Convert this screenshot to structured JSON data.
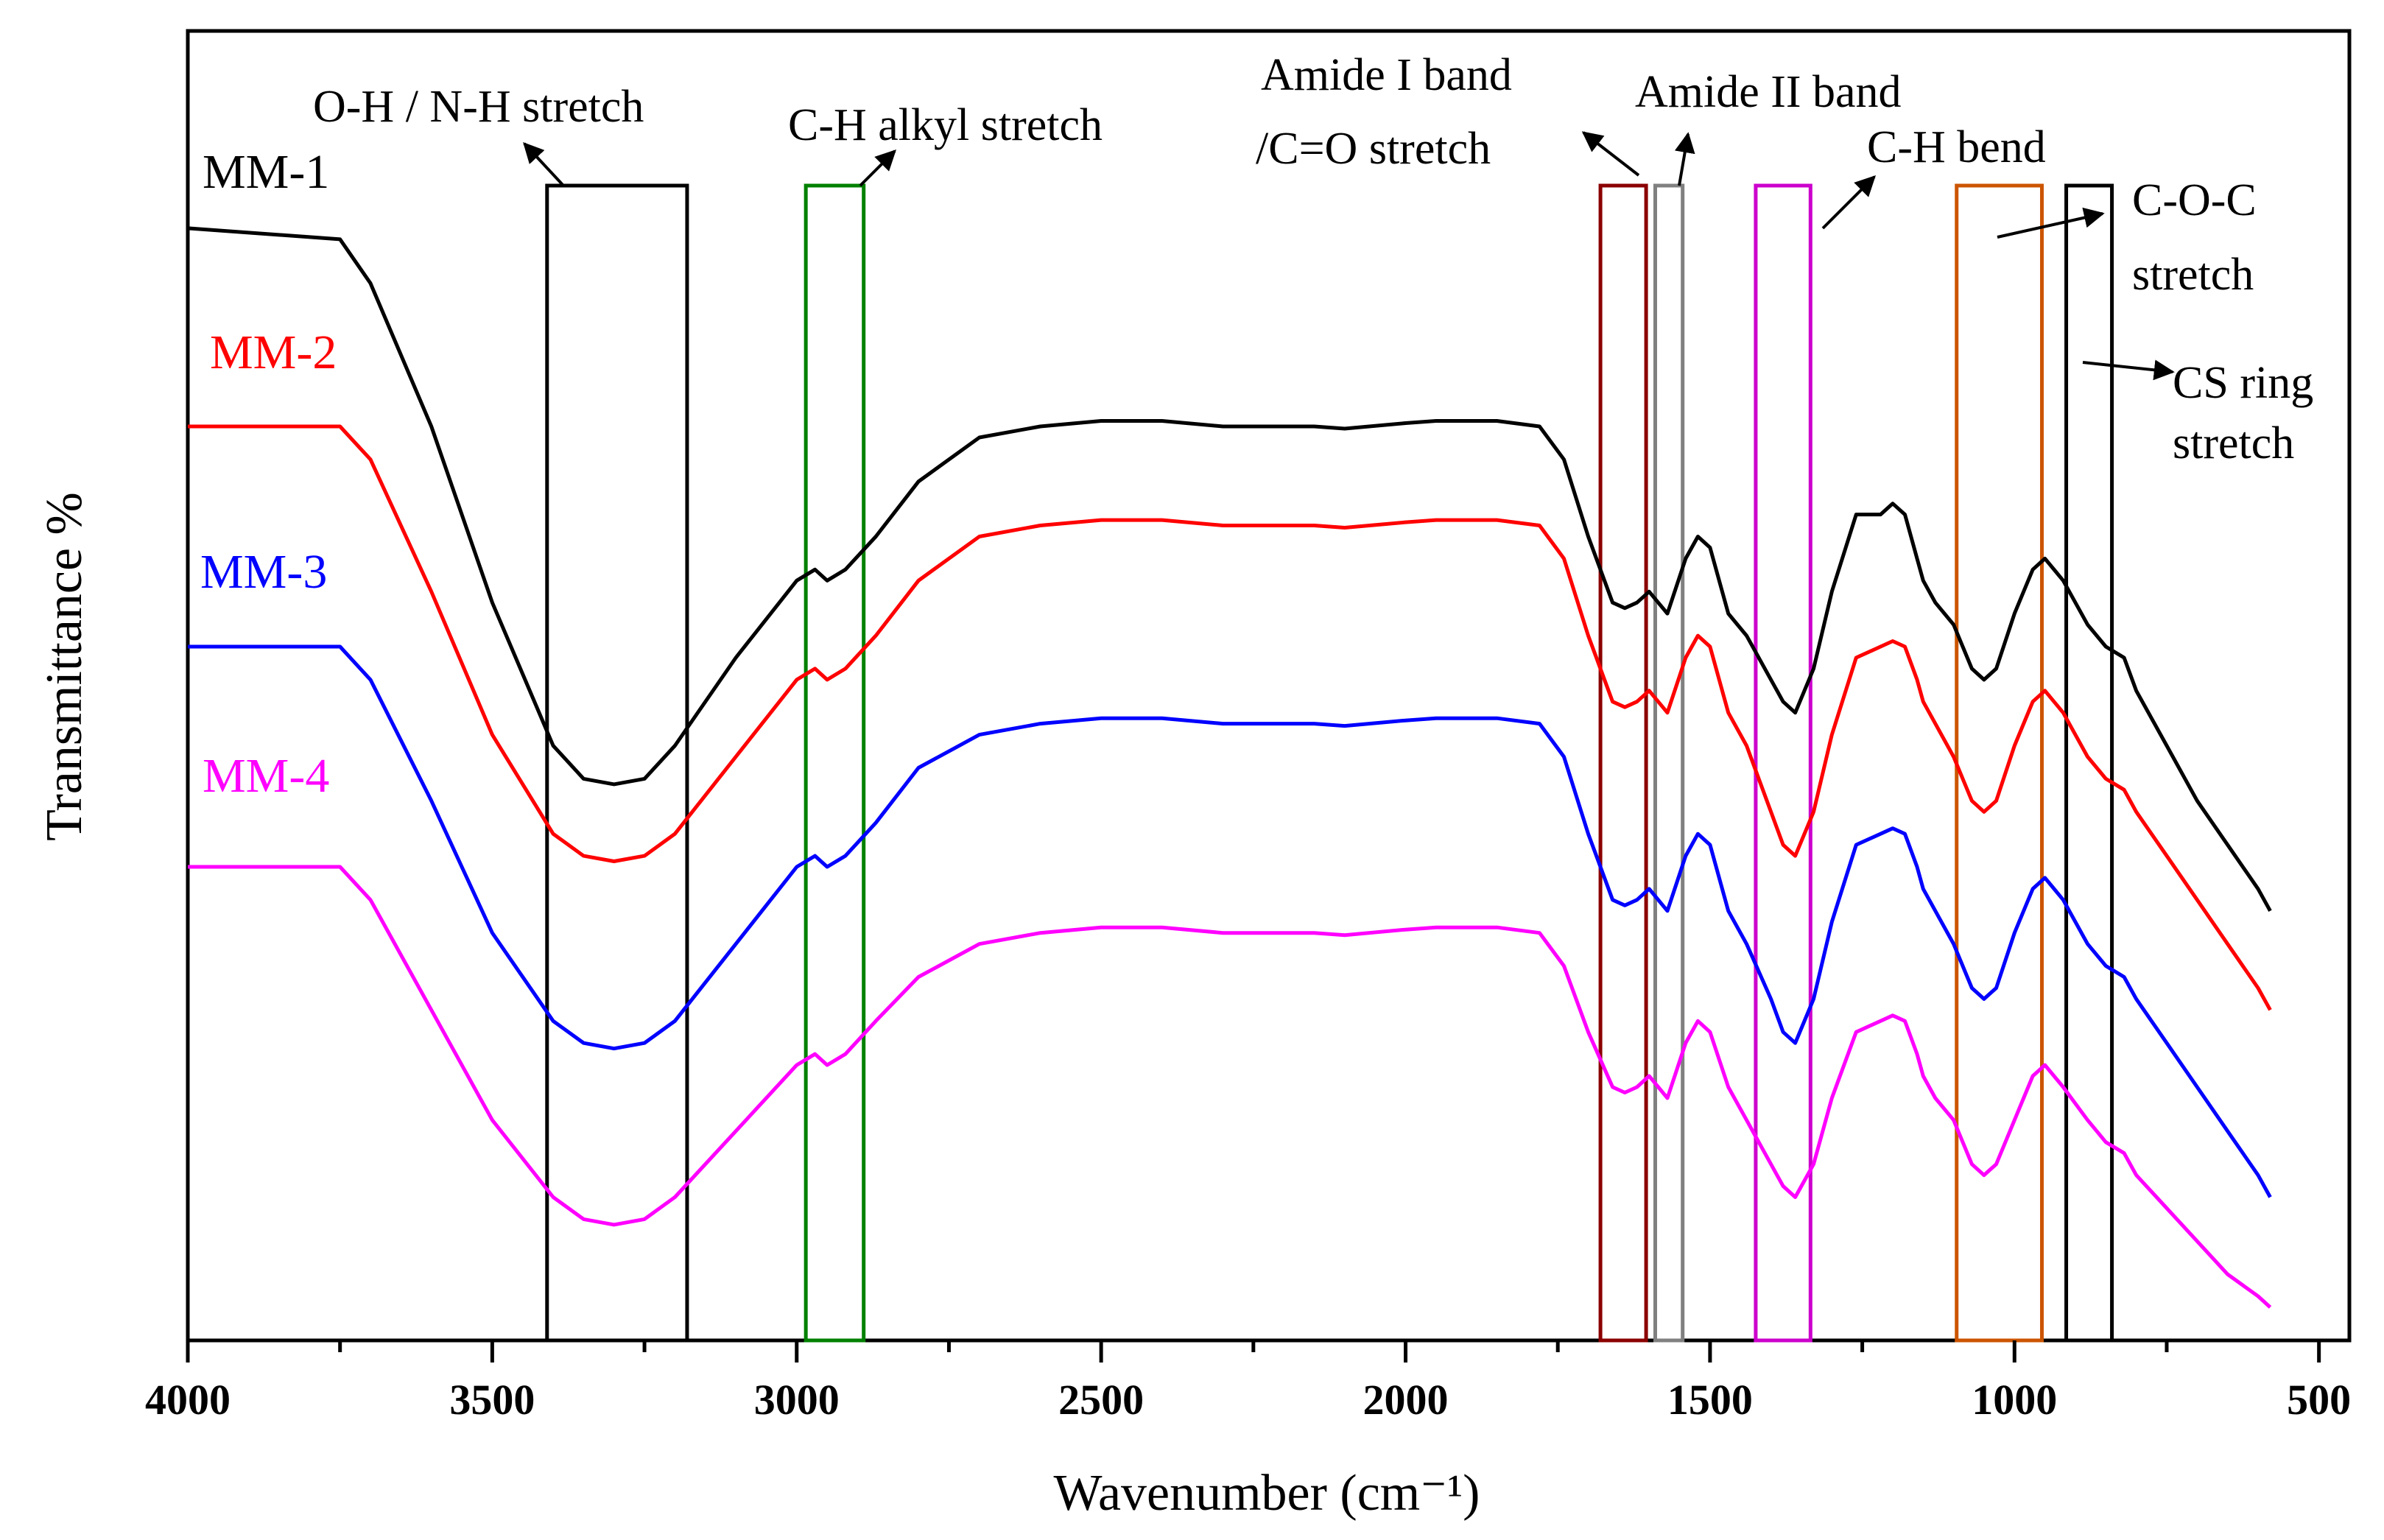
{
  "chart_data": {
    "type": "line",
    "title": "",
    "xlabel": "Wavenumber (cm⁻¹)",
    "ylabel": "Transmittance %",
    "xlim": [
      4000,
      450
    ],
    "ylim": [
      0,
      100
    ],
    "xticks": [
      4000,
      3500,
      3000,
      2500,
      2000,
      1500,
      1000,
      500
    ],
    "series": [
      {
        "name": "MM-1",
        "color": "#000000",
        "points": [
          [
            4000,
            98
          ],
          [
            3750,
            97
          ],
          [
            3700,
            93
          ],
          [
            3600,
            80
          ],
          [
            3500,
            64
          ],
          [
            3400,
            51
          ],
          [
            3350,
            48
          ],
          [
            3300,
            47.5
          ],
          [
            3250,
            48
          ],
          [
            3200,
            51
          ],
          [
            3100,
            59
          ],
          [
            3000,
            66
          ],
          [
            2970,
            67
          ],
          [
            2950,
            66
          ],
          [
            2920,
            67
          ],
          [
            2870,
            70
          ],
          [
            2800,
            75
          ],
          [
            2700,
            79
          ],
          [
            2600,
            80
          ],
          [
            2500,
            80.5
          ],
          [
            2400,
            80.5
          ],
          [
            2300,
            80
          ],
          [
            2200,
            80
          ],
          [
            2150,
            80
          ],
          [
            2100,
            79.8
          ],
          [
            2000,
            80.3
          ],
          [
            1950,
            80.5
          ],
          [
            1850,
            80.5
          ],
          [
            1780,
            80
          ],
          [
            1740,
            77
          ],
          [
            1700,
            70
          ],
          [
            1660,
            64
          ],
          [
            1640,
            63.5
          ],
          [
            1620,
            64
          ],
          [
            1600,
            65
          ],
          [
            1570,
            63
          ],
          [
            1540,
            68
          ],
          [
            1520,
            70
          ],
          [
            1500,
            69
          ],
          [
            1470,
            63
          ],
          [
            1440,
            61
          ],
          [
            1400,
            57
          ],
          [
            1380,
            55
          ],
          [
            1360,
            54
          ],
          [
            1330,
            58
          ],
          [
            1300,
            65
          ],
          [
            1260,
            72
          ],
          [
            1220,
            72
          ],
          [
            1200,
            73
          ],
          [
            1180,
            72
          ],
          [
            1160,
            68
          ],
          [
            1150,
            66
          ],
          [
            1130,
            64
          ],
          [
            1100,
            62
          ],
          [
            1070,
            58
          ],
          [
            1050,
            57
          ],
          [
            1040,
            57.5
          ],
          [
            1030,
            58
          ],
          [
            1000,
            63
          ],
          [
            970,
            67
          ],
          [
            950,
            68
          ],
          [
            920,
            66
          ],
          [
            880,
            62
          ],
          [
            850,
            60
          ],
          [
            820,
            59
          ],
          [
            800,
            56
          ],
          [
            750,
            51
          ],
          [
            700,
            46
          ],
          [
            650,
            42
          ],
          [
            600,
            38
          ],
          [
            580,
            36
          ]
        ]
      },
      {
        "name": "MM-2",
        "color": "#ff0000",
        "points": [
          [
            4000,
            80
          ],
          [
            3750,
            80
          ],
          [
            3700,
            77
          ],
          [
            3600,
            65
          ],
          [
            3500,
            52
          ],
          [
            3400,
            43
          ],
          [
            3350,
            41
          ],
          [
            3300,
            40.5
          ],
          [
            3250,
            41
          ],
          [
            3200,
            43
          ],
          [
            3100,
            50
          ],
          [
            3000,
            57
          ],
          [
            2970,
            58
          ],
          [
            2950,
            57
          ],
          [
            2920,
            58
          ],
          [
            2870,
            61
          ],
          [
            2800,
            66
          ],
          [
            2700,
            70
          ],
          [
            2600,
            71
          ],
          [
            2500,
            71.5
          ],
          [
            2400,
            71.5
          ],
          [
            2300,
            71
          ],
          [
            2200,
            71
          ],
          [
            2150,
            71
          ],
          [
            2100,
            70.8
          ],
          [
            2000,
            71.3
          ],
          [
            1950,
            71.5
          ],
          [
            1850,
            71.5
          ],
          [
            1780,
            71
          ],
          [
            1740,
            68
          ],
          [
            1700,
            61
          ],
          [
            1660,
            55
          ],
          [
            1640,
            54.5
          ],
          [
            1620,
            55
          ],
          [
            1600,
            56
          ],
          [
            1570,
            54
          ],
          [
            1540,
            59
          ],
          [
            1520,
            61
          ],
          [
            1500,
            60
          ],
          [
            1470,
            54
          ],
          [
            1440,
            51
          ],
          [
            1400,
            45
          ],
          [
            1380,
            42
          ],
          [
            1360,
            41
          ],
          [
            1330,
            45
          ],
          [
            1300,
            52
          ],
          [
            1260,
            59
          ],
          [
            1220,
            60
          ],
          [
            1200,
            60.5
          ],
          [
            1180,
            60
          ],
          [
            1160,
            57
          ],
          [
            1150,
            55
          ],
          [
            1130,
            53
          ],
          [
            1100,
            50
          ],
          [
            1070,
            46
          ],
          [
            1050,
            45
          ],
          [
            1040,
            45.5
          ],
          [
            1030,
            46
          ],
          [
            1000,
            51
          ],
          [
            970,
            55
          ],
          [
            950,
            56
          ],
          [
            920,
            54
          ],
          [
            880,
            50
          ],
          [
            850,
            48
          ],
          [
            820,
            47
          ],
          [
            800,
            45
          ],
          [
            750,
            41
          ],
          [
            700,
            37
          ],
          [
            650,
            33
          ],
          [
            600,
            29
          ],
          [
            580,
            27
          ]
        ]
      },
      {
        "name": "MM-3",
        "color": "#0000ff",
        "points": [
          [
            4000,
            60
          ],
          [
            3750,
            60
          ],
          [
            3700,
            57
          ],
          [
            3600,
            46
          ],
          [
            3500,
            34
          ],
          [
            3400,
            26
          ],
          [
            3350,
            24
          ],
          [
            3300,
            23.5
          ],
          [
            3250,
            24
          ],
          [
            3200,
            26
          ],
          [
            3100,
            33
          ],
          [
            3000,
            40
          ],
          [
            2970,
            41
          ],
          [
            2950,
            40
          ],
          [
            2920,
            41
          ],
          [
            2870,
            44
          ],
          [
            2800,
            49
          ],
          [
            2700,
            52
          ],
          [
            2600,
            53
          ],
          [
            2500,
            53.5
          ],
          [
            2400,
            53.5
          ],
          [
            2300,
            53
          ],
          [
            2200,
            53
          ],
          [
            2150,
            53
          ],
          [
            2100,
            52.8
          ],
          [
            2000,
            53.3
          ],
          [
            1950,
            53.5
          ],
          [
            1850,
            53.5
          ],
          [
            1780,
            53
          ],
          [
            1740,
            50
          ],
          [
            1700,
            43
          ],
          [
            1660,
            37
          ],
          [
            1640,
            36.5
          ],
          [
            1620,
            37
          ],
          [
            1600,
            38
          ],
          [
            1570,
            36
          ],
          [
            1540,
            41
          ],
          [
            1520,
            43
          ],
          [
            1500,
            42
          ],
          [
            1470,
            36
          ],
          [
            1440,
            33
          ],
          [
            1400,
            28
          ],
          [
            1380,
            25
          ],
          [
            1360,
            24
          ],
          [
            1330,
            28
          ],
          [
            1300,
            35
          ],
          [
            1260,
            42
          ],
          [
            1220,
            43
          ],
          [
            1200,
            43.5
          ],
          [
            1180,
            43
          ],
          [
            1160,
            40
          ],
          [
            1150,
            38
          ],
          [
            1130,
            36
          ],
          [
            1100,
            33
          ],
          [
            1070,
            29
          ],
          [
            1050,
            28
          ],
          [
            1040,
            28.5
          ],
          [
            1030,
            29
          ],
          [
            1000,
            34
          ],
          [
            970,
            38
          ],
          [
            950,
            39
          ],
          [
            920,
            37
          ],
          [
            880,
            33
          ],
          [
            850,
            31
          ],
          [
            820,
            30
          ],
          [
            800,
            28
          ],
          [
            750,
            24
          ],
          [
            700,
            20
          ],
          [
            650,
            16
          ],
          [
            600,
            12
          ],
          [
            580,
            10
          ]
        ]
      },
      {
        "name": "MM-4",
        "color": "#ff00ff",
        "points": [
          [
            4000,
            40
          ],
          [
            3750,
            40
          ],
          [
            3700,
            37
          ],
          [
            3600,
            27
          ],
          [
            3500,
            17
          ],
          [
            3400,
            10
          ],
          [
            3350,
            8
          ],
          [
            3300,
            7.5
          ],
          [
            3250,
            8
          ],
          [
            3200,
            10
          ],
          [
            3100,
            16
          ],
          [
            3000,
            22
          ],
          [
            2970,
            23
          ],
          [
            2950,
            22
          ],
          [
            2920,
            23
          ],
          [
            2870,
            26
          ],
          [
            2800,
            30
          ],
          [
            2700,
            33
          ],
          [
            2600,
            34
          ],
          [
            2500,
            34.5
          ],
          [
            2400,
            34.5
          ],
          [
            2300,
            34
          ],
          [
            2200,
            34
          ],
          [
            2150,
            34
          ],
          [
            2100,
            33.8
          ],
          [
            2000,
            34.3
          ],
          [
            1950,
            34.5
          ],
          [
            1850,
            34.5
          ],
          [
            1780,
            34
          ],
          [
            1740,
            31
          ],
          [
            1700,
            25
          ],
          [
            1660,
            20
          ],
          [
            1640,
            19.5
          ],
          [
            1620,
            20
          ],
          [
            1600,
            21
          ],
          [
            1570,
            19
          ],
          [
            1540,
            24
          ],
          [
            1520,
            26
          ],
          [
            1500,
            25
          ],
          [
            1470,
            20
          ],
          [
            1440,
            17
          ],
          [
            1400,
            13
          ],
          [
            1380,
            11
          ],
          [
            1360,
            10
          ],
          [
            1330,
            13
          ],
          [
            1300,
            19
          ],
          [
            1260,
            25
          ],
          [
            1220,
            26
          ],
          [
            1200,
            26.5
          ],
          [
            1180,
            26
          ],
          [
            1160,
            23
          ],
          [
            1150,
            21
          ],
          [
            1130,
            19
          ],
          [
            1100,
            17
          ],
          [
            1070,
            13
          ],
          [
            1050,
            12
          ],
          [
            1040,
            12.5
          ],
          [
            1030,
            13
          ],
          [
            1000,
            17
          ],
          [
            970,
            21
          ],
          [
            950,
            22
          ],
          [
            920,
            20
          ],
          [
            880,
            17
          ],
          [
            850,
            15
          ],
          [
            820,
            14
          ],
          [
            800,
            12
          ],
          [
            750,
            9
          ],
          [
            700,
            6
          ],
          [
            650,
            3
          ],
          [
            600,
            1
          ],
          [
            580,
            0
          ]
        ]
      }
    ],
    "bands": [
      {
        "name": "O-H / N-H stretch",
        "range": [
          3410,
          3180
        ],
        "color": "#000000"
      },
      {
        "name": "C-H alkyl stretch",
        "range": [
          2985,
          2890
        ],
        "color": "#008000"
      },
      {
        "name": "Amide I band /C=O stretch",
        "range": [
          1680,
          1605
        ],
        "color": "#8b0000"
      },
      {
        "name": "Amide II band",
        "range": [
          1590,
          1545
        ],
        "color": "#808080"
      },
      {
        "name": "C-H bend",
        "range": [
          1425,
          1335
        ],
        "color": "#cc00cc"
      },
      {
        "name": "C-O-C stretch",
        "range": [
          1095,
          955
        ],
        "color": "#cc5500"
      },
      {
        "name": "CS ring stretch",
        "range": [
          915,
          840
        ],
        "color": "#000000"
      }
    ],
    "annotations": {
      "oh": "O-H / N-H stretch",
      "ch_alkyl": "C-H alkyl stretch",
      "amide1_line1": "Amide I band",
      "amide1_line2": "/C=O stretch",
      "amide2": "Amide II band",
      "ch_bend": "C-H bend",
      "coc_line1": "C-O-C",
      "coc_line2": "stretch",
      "cs_line1": "CS ring",
      "cs_line2": "stretch"
    }
  }
}
